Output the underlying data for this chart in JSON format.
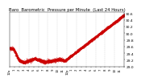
{
  "title": "Baro  Barometric  Pressure per Minute  (Last 24 Hours)",
  "bg_color": "#ffffff",
  "plot_bg": "#ffffff",
  "line_color": "#cc0000",
  "grid_color": "#bbbbbb",
  "text_color": "#000000",
  "ylim": [
    29.0,
    30.65
  ],
  "yticks": [
    29.0,
    29.2,
    29.4,
    29.6,
    29.8,
    30.0,
    30.2,
    30.4,
    30.6
  ],
  "ylabel_fontsize": 3.2,
  "xlabel_fontsize": 2.8,
  "title_fontsize": 3.8,
  "n_points": 1440,
  "vgrid_positions": [
    0.083,
    0.167,
    0.25,
    0.333,
    0.417,
    0.5,
    0.583,
    0.667,
    0.75,
    0.833,
    0.917
  ],
  "xtick_labels": [
    "12a",
    "1",
    "2",
    "3",
    "4",
    "5",
    "6",
    "7",
    "8",
    "9",
    "10",
    "11",
    "12p",
    "1",
    "2",
    "3",
    "4",
    "5",
    "6",
    "7",
    "8",
    "9",
    "10",
    "11",
    ""
  ],
  "marker_size": 0.5
}
